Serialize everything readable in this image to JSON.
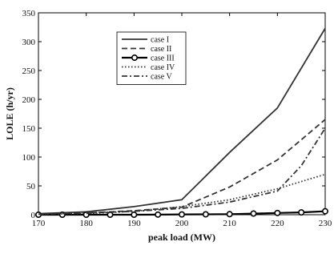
{
  "chart_data": {
    "type": "line",
    "title": "",
    "xlabel": "peak load (MW)",
    "ylabel": "LOLE (h/yr)",
    "xlim": [
      170,
      230
    ],
    "ylim": [
      0,
      350
    ],
    "xticks": [
      "170",
      "180",
      "190",
      "200",
      "210",
      "220",
      "230"
    ],
    "yticks": [
      "0",
      "50",
      "100",
      "150",
      "200",
      "250",
      "300",
      "350"
    ],
    "grid": false,
    "legend_position": "upper-left-center",
    "series": [
      {
        "name": "case I",
        "style": "solid",
        "color": "#333333",
        "x": [
          170,
          180,
          190,
          200,
          210,
          220,
          230
        ],
        "y": [
          2,
          5,
          14,
          26,
          108,
          185,
          323
        ]
      },
      {
        "name": "case II",
        "style": "dashed",
        "color": "#333333",
        "x": [
          170,
          180,
          190,
          200,
          210,
          220,
          230
        ],
        "y": [
          1,
          3,
          7,
          13,
          48,
          95,
          165
        ]
      },
      {
        "name": "case III",
        "style": "solid-circle",
        "color": "#000000",
        "x": [
          170,
          175,
          180,
          185,
          190,
          195,
          200,
          205,
          210,
          215,
          220,
          225,
          230
        ],
        "y": [
          0,
          0,
          0,
          0,
          0,
          0.2,
          0.5,
          0.7,
          1,
          2,
          3,
          4,
          6
        ]
      },
      {
        "name": "case IV",
        "style": "dotted",
        "color": "#333333",
        "x": [
          170,
          180,
          190,
          200,
          210,
          220,
          230
        ],
        "y": [
          1,
          2,
          6,
          14,
          26,
          45,
          70
        ]
      },
      {
        "name": "case V",
        "style": "dashdot",
        "color": "#333333",
        "x": [
          170,
          180,
          190,
          200,
          210,
          220,
          225,
          230
        ],
        "y": [
          1,
          3,
          6,
          11,
          22,
          41,
          85,
          150
        ]
      }
    ]
  }
}
